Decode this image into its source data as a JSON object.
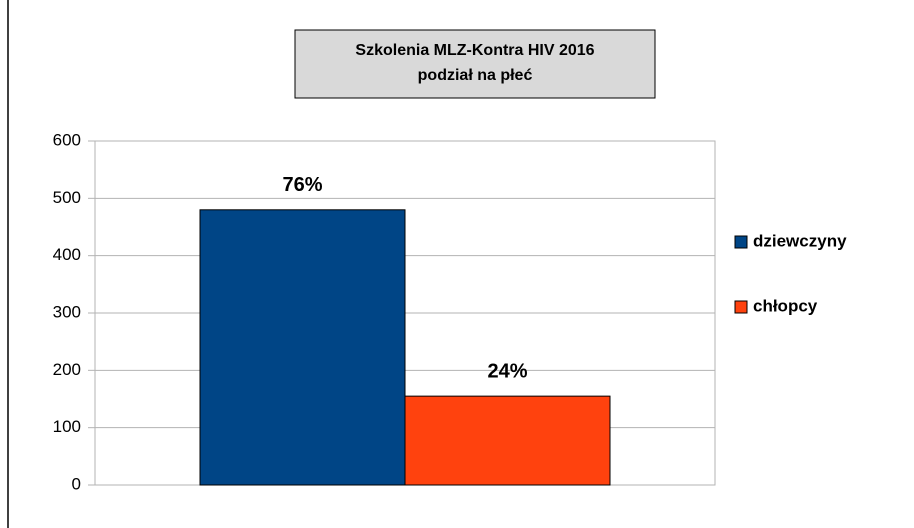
{
  "chart_data": {
    "type": "bar",
    "title": [
      "Szkolenia MLZ-Kontra HIV 2016",
      "podział na płeć"
    ],
    "categories": [
      null
    ],
    "series": [
      {
        "name": "dziewczyny",
        "color": "#004586",
        "values": [
          480
        ]
      },
      {
        "name": "chłopcy",
        "color": "#ff420e",
        "values": [
          155
        ]
      }
    ],
    "annotations": [
      "76%",
      "24%"
    ],
    "ylim": [
      0,
      600
    ],
    "yticks": [
      0,
      100,
      200,
      300,
      400,
      500,
      600
    ],
    "grid": true,
    "legend": "right"
  }
}
